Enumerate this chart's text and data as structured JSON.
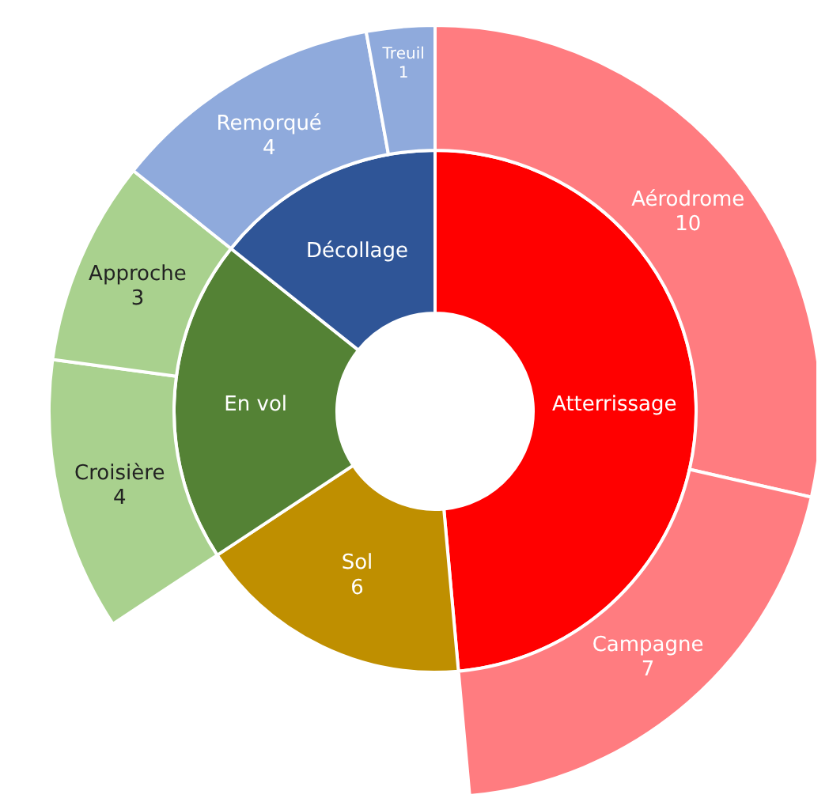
{
  "chart_data": [
    {
      "type": "donut",
      "categories": [
        "Atterrissage",
        "Sol",
        "En vol",
        "Décollage"
      ],
      "values": [
        17,
        6,
        7,
        5
      ],
      "colors": [
        "#ff0000",
        "#bf8f00",
        "#548235",
        "#2f5597"
      ],
      "value_labels": [
        null,
        "6",
        null,
        null
      ]
    },
    {
      "type": "donut",
      "categories": [
        "Aérodrome",
        "Campagne",
        null,
        "Croisière",
        "Approche",
        "Remorqué",
        "Treuil"
      ],
      "values": [
        10,
        7,
        null,
        4,
        3,
        4,
        1
      ],
      "colors": [
        "#ff7c80",
        "#ff7c80",
        null,
        "#a9d18e",
        "#a9d18e",
        "#8faadc",
        "#8faadc"
      ],
      "data_labels": true
    }
  ]
}
